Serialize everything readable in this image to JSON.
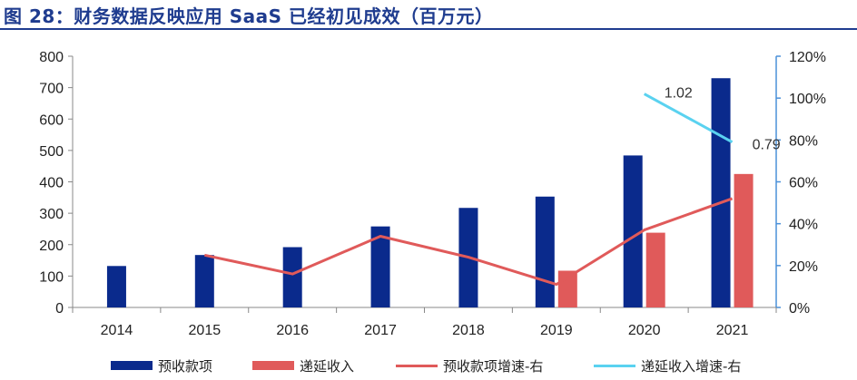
{
  "title": "图 28：财务数据反映应用 SaaS 已经初见成效（百万元）",
  "colors": {
    "bar1": "#0a2a8c",
    "bar2": "#e05a5a",
    "line1": "#e05a5a",
    "line2": "#5ad2f0",
    "axis_right": "#4a90d9",
    "title": "#1f3c8f"
  },
  "chart_data": {
    "type": "bar",
    "categories": [
      "2014",
      "2015",
      "2016",
      "2017",
      "2018",
      "2019",
      "2020",
      "2021"
    ],
    "y_left": {
      "ylim": [
        0,
        800
      ],
      "ticks": [
        "0",
        "100",
        "200",
        "300",
        "400",
        "500",
        "600",
        "700",
        "800"
      ]
    },
    "y_right": {
      "ylim": [
        0,
        1.2
      ],
      "ticks": [
        "0%",
        "20%",
        "40%",
        "60%",
        "80%",
        "100%",
        "120%"
      ]
    },
    "series": [
      {
        "name": "预收款项",
        "kind": "bar",
        "axis": "left",
        "values": [
          132,
          167,
          192,
          258,
          317,
          353,
          484,
          730
        ]
      },
      {
        "name": "递延收入",
        "kind": "bar",
        "axis": "left",
        "values": [
          null,
          null,
          null,
          null,
          null,
          117,
          238,
          425
        ]
      },
      {
        "name": "预收款项增速-右",
        "kind": "line",
        "axis": "right",
        "values": [
          null,
          0.25,
          0.16,
          0.34,
          0.24,
          0.11,
          0.37,
          0.52
        ]
      },
      {
        "name": "递延收入增速-右",
        "kind": "line",
        "axis": "right",
        "values": [
          null,
          null,
          null,
          null,
          null,
          null,
          1.02,
          0.79
        ]
      }
    ],
    "annotations": [
      {
        "series": "递延收入增速-右",
        "category": "2020",
        "label": "1.02"
      },
      {
        "series": "递延收入增速-右",
        "category": "2021",
        "label": "0.79"
      }
    ],
    "legend_position": "bottom",
    "grid": false
  },
  "legend": [
    {
      "label": "预收款项",
      "kind": "bar"
    },
    {
      "label": "递延收入",
      "kind": "bar"
    },
    {
      "label": "预收款项增速-右",
      "kind": "line"
    },
    {
      "label": "递延收入增速-右",
      "kind": "line"
    }
  ]
}
